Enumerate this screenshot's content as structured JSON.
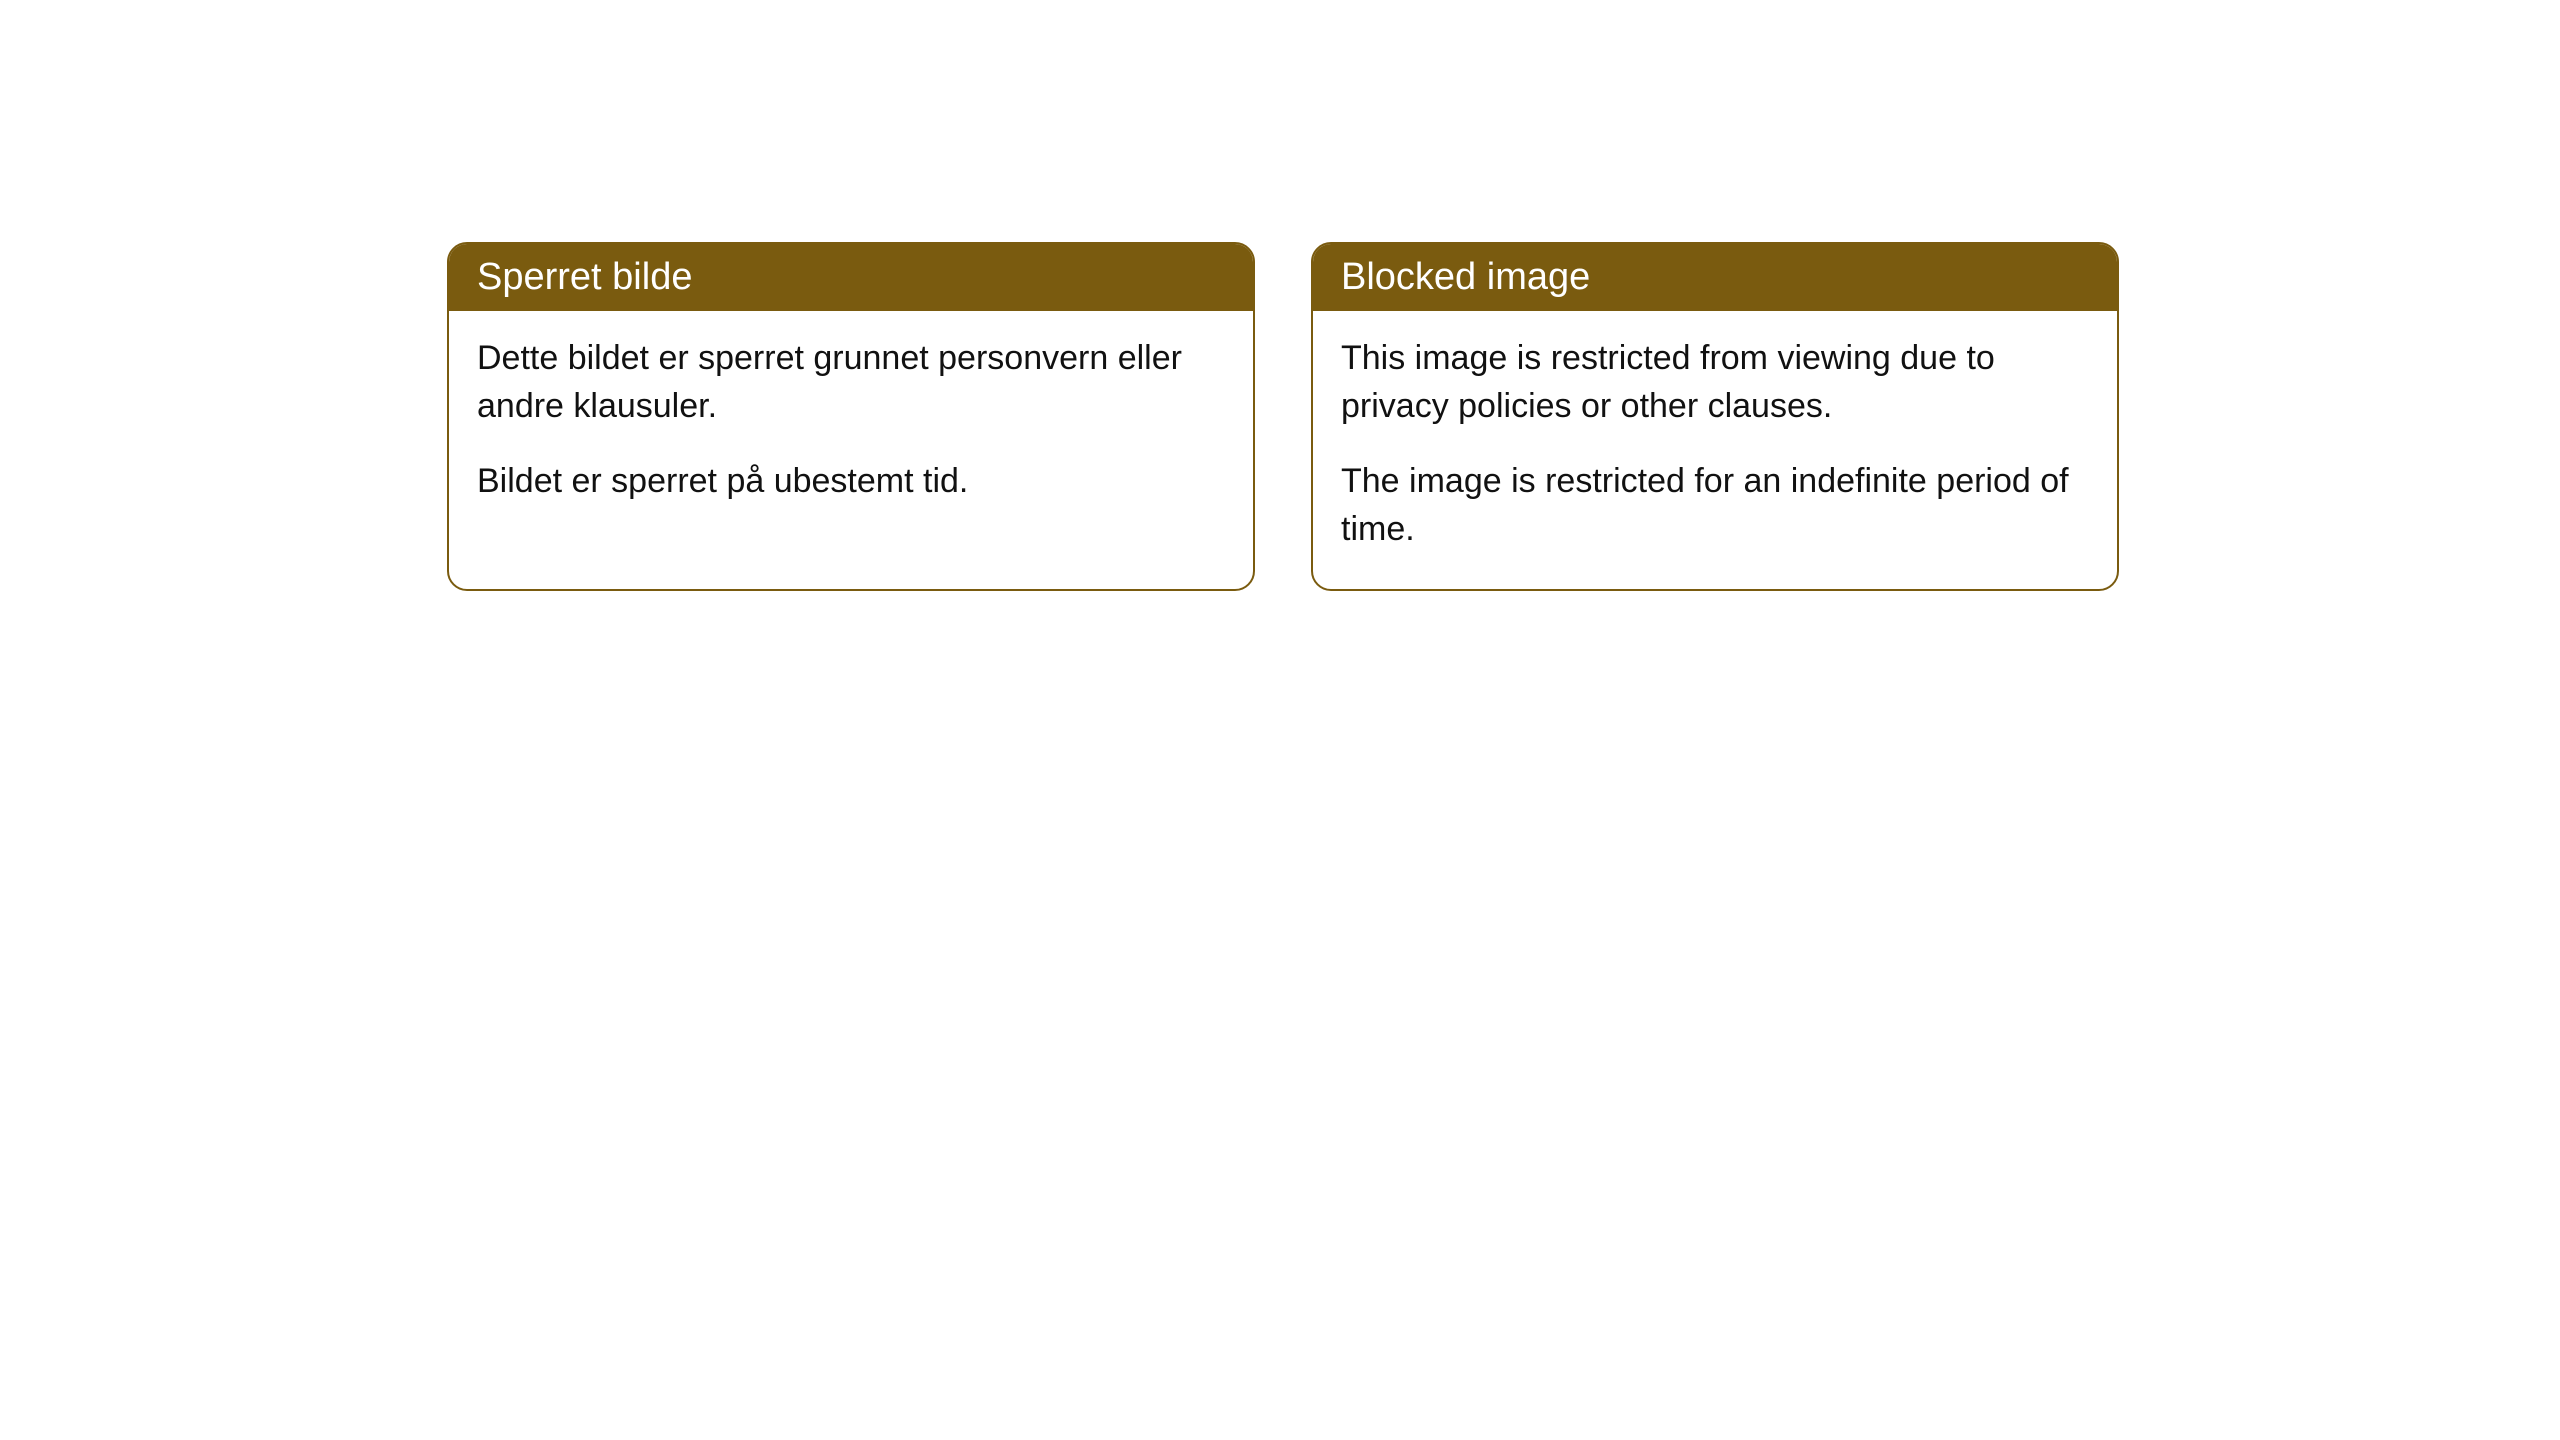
{
  "notices": [
    {
      "title": "Sperret bilde",
      "paragraph1": "Dette bildet er sperret grunnet personvern eller andre klausuler.",
      "paragraph2": "Bildet er sperret på ubestemt tid."
    },
    {
      "title": "Blocked image",
      "paragraph1": "This image is restricted from viewing due to privacy policies or other clauses.",
      "paragraph2": "The image is restricted for an indefinite period of time."
    }
  ],
  "colors": {
    "header_bg": "#7a5b0f",
    "header_text": "#ffffff",
    "border": "#7a5b0f",
    "body_text": "#111111",
    "page_bg": "#ffffff"
  }
}
